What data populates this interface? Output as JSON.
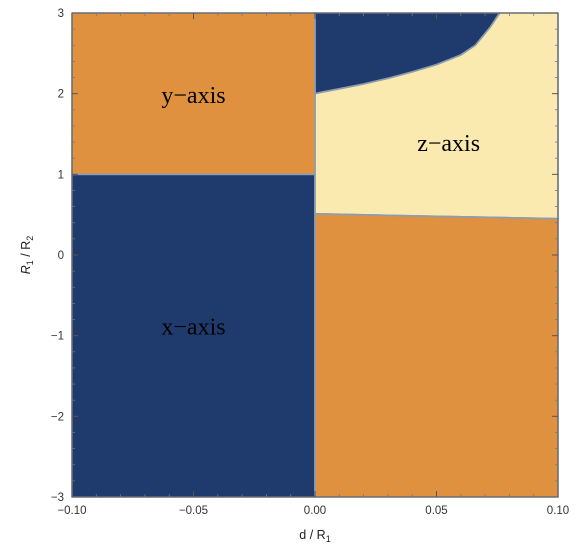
{
  "chart_data": {
    "type": "heatmap",
    "title": "",
    "xlabel": "d / R",
    "xlabel_sub": "1",
    "ylabel_parts": [
      "R",
      "1",
      " / R",
      "2"
    ],
    "xlim": [
      -0.1,
      0.1
    ],
    "ylim": [
      -3,
      3
    ],
    "x_ticks": [
      -0.1,
      -0.05,
      0,
      0.05,
      0.1
    ],
    "x_tick_labels": [
      "−0.10",
      "−0.05",
      "0.00",
      "0.05",
      "0.10"
    ],
    "y_ticks": [
      -3,
      -2,
      -1,
      0,
      1,
      2,
      3
    ],
    "y_tick_labels": [
      "−3",
      "−2",
      "−1",
      "0",
      "1",
      "2",
      "3"
    ],
    "grid": false,
    "legend": "none",
    "colors": {
      "x_axis": "#1f3b6e",
      "y_axis": "#e0913f",
      "z_axis": "#fbeab0",
      "boundary": "#8d9db0"
    },
    "regions": [
      {
        "id": "x-axis",
        "label": "x−axis",
        "color_key": "x_axis",
        "polygon": [
          [
            -0.1,
            -3
          ],
          [
            0,
            -3
          ],
          [
            0,
            1
          ],
          [
            -0.1,
            1
          ]
        ]
      },
      {
        "id": "y-axis-left",
        "label": "y−axis",
        "color_key": "y_axis",
        "polygon": [
          [
            -0.1,
            1
          ],
          [
            0,
            1
          ],
          [
            0,
            3
          ],
          [
            -0.1,
            3
          ]
        ]
      },
      {
        "id": "y-axis-right",
        "label": "",
        "color_key": "y_axis",
        "polygon": [
          [
            0,
            -3
          ],
          [
            0.1,
            -3
          ],
          [
            0.1,
            0.45
          ],
          [
            0.05,
            0.48
          ],
          [
            0.0007,
            0.51
          ],
          [
            0,
            0.51
          ]
        ]
      },
      {
        "id": "z-axis",
        "label": "z−axis",
        "color_key": "z_axis",
        "polygon": [
          [
            0,
            0.51
          ],
          [
            0.0007,
            0.51
          ],
          [
            0.05,
            0.48
          ],
          [
            0.1,
            0.45
          ],
          [
            0.1,
            3
          ],
          [
            0.076,
            3
          ],
          [
            0.072,
            2.82
          ],
          [
            0.066,
            2.6
          ],
          [
            0.06,
            2.48
          ],
          [
            0.05,
            2.36
          ],
          [
            0.04,
            2.27
          ],
          [
            0.03,
            2.19
          ],
          [
            0.02,
            2.12
          ],
          [
            0.01,
            2.06
          ],
          [
            0.003,
            2.02
          ],
          [
            0,
            2
          ]
        ]
      },
      {
        "id": "x-axis-upper",
        "label": "",
        "color_key": "x_axis",
        "polygon": [
          [
            0,
            2
          ],
          [
            0.003,
            2.02
          ],
          [
            0.01,
            2.06
          ],
          [
            0.02,
            2.12
          ],
          [
            0.03,
            2.19
          ],
          [
            0.04,
            2.27
          ],
          [
            0.05,
            2.36
          ],
          [
            0.06,
            2.48
          ],
          [
            0.066,
            2.6
          ],
          [
            0.072,
            2.82
          ],
          [
            0.076,
            3
          ],
          [
            0,
            3
          ]
        ]
      }
    ],
    "annotations": [
      {
        "text": "y−axis",
        "x": -0.05,
        "y": 1.95
      },
      {
        "text": "z−axis",
        "x": 0.055,
        "y": 1.36
      },
      {
        "text": "x−axis",
        "x": -0.05,
        "y": -0.92
      }
    ]
  }
}
